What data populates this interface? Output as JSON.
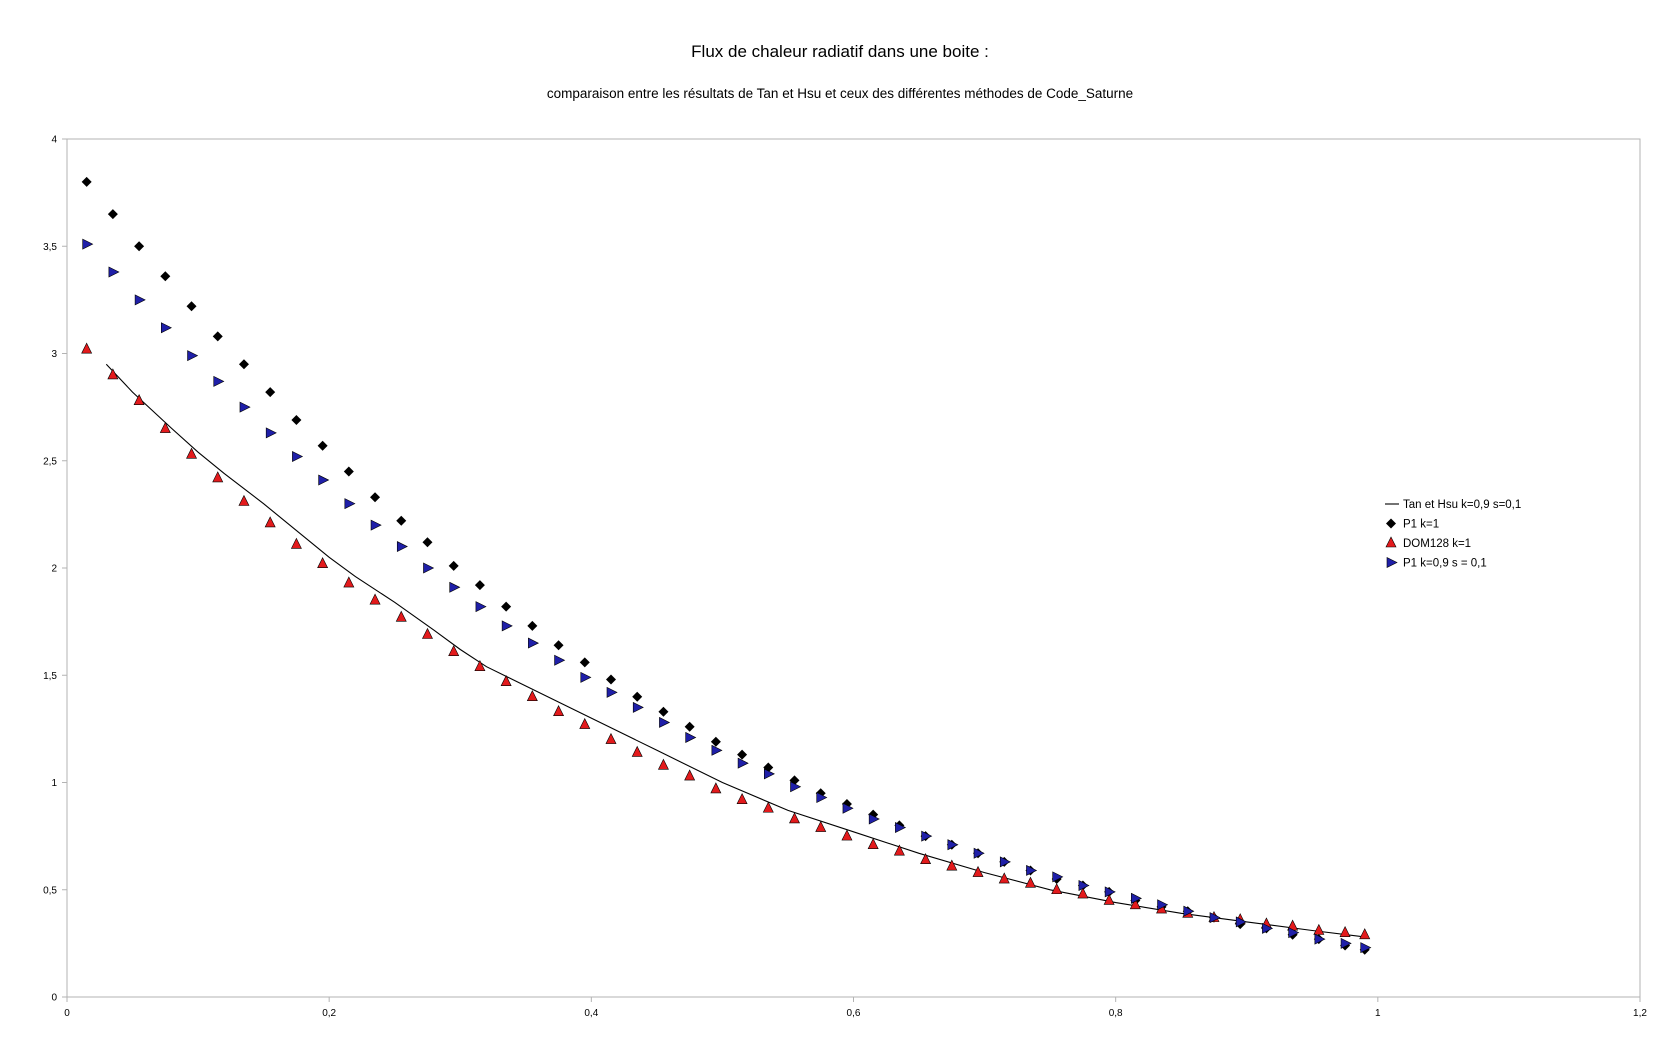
{
  "chart_data": {
    "type": "scatter",
    "title": "Flux de chaleur radiatif dans une boite :",
    "subtitle": "comparaison entre les résultats de Tan et Hsu et ceux des différentes méthodes de Code_Saturne",
    "xlim": [
      0,
      1.2
    ],
    "ylim": [
      0,
      4
    ],
    "x_ticks": [
      "0",
      "0,2",
      "0,4",
      "0,6",
      "0,8",
      "1",
      "1,2"
    ],
    "y_ticks": [
      "0",
      "0,5",
      "1",
      "1,5",
      "2",
      "2,5",
      "3",
      "3,5",
      "4"
    ],
    "grid": false,
    "legend_position": "right",
    "series": [
      {
        "name": "Tan et Hsu k=0,9 s=0,1",
        "marker": "line",
        "color": "#000000",
        "x": [
          0.03,
          0.05,
          0.08,
          0.1,
          0.12,
          0.15,
          0.18,
          0.2,
          0.22,
          0.25,
          0.28,
          0.3,
          0.32,
          0.35,
          0.4,
          0.45,
          0.5,
          0.55,
          0.6,
          0.65,
          0.7,
          0.75,
          0.8,
          0.85,
          0.9,
          0.95,
          0.99
        ],
        "y": [
          2.95,
          2.82,
          2.65,
          2.54,
          2.44,
          2.3,
          2.15,
          2.05,
          1.96,
          1.84,
          1.71,
          1.62,
          1.54,
          1.45,
          1.3,
          1.15,
          1.0,
          0.87,
          0.77,
          0.67,
          0.58,
          0.5,
          0.44,
          0.39,
          0.35,
          0.31,
          0.28
        ]
      },
      {
        "name": "P1 k=1",
        "marker": "diamond",
        "color": "#000000",
        "x": [
          0.015,
          0.035,
          0.055,
          0.075,
          0.095,
          0.115,
          0.135,
          0.155,
          0.175,
          0.195,
          0.215,
          0.235,
          0.255,
          0.275,
          0.295,
          0.315,
          0.335,
          0.355,
          0.375,
          0.395,
          0.415,
          0.435,
          0.455,
          0.475,
          0.495,
          0.515,
          0.535,
          0.555,
          0.575,
          0.595,
          0.615,
          0.635,
          0.655,
          0.675,
          0.695,
          0.715,
          0.735,
          0.755,
          0.775,
          0.795,
          0.815,
          0.835,
          0.855,
          0.875,
          0.895,
          0.915,
          0.935,
          0.955,
          0.975,
          0.99
        ],
        "y": [
          3.8,
          3.65,
          3.5,
          3.36,
          3.22,
          3.08,
          2.95,
          2.82,
          2.69,
          2.57,
          2.45,
          2.33,
          2.22,
          2.12,
          2.01,
          1.92,
          1.82,
          1.73,
          1.64,
          1.56,
          1.48,
          1.4,
          1.33,
          1.26,
          1.19,
          1.13,
          1.07,
          1.01,
          0.95,
          0.9,
          0.85,
          0.8,
          0.75,
          0.71,
          0.67,
          0.63,
          0.59,
          0.55,
          0.52,
          0.49,
          0.45,
          0.42,
          0.4,
          0.37,
          0.34,
          0.32,
          0.29,
          0.27,
          0.24,
          0.22
        ]
      },
      {
        "name": "DOM128 k=1",
        "marker": "triangle",
        "color": "#e31a1c",
        "x": [
          0.015,
          0.035,
          0.055,
          0.075,
          0.095,
          0.115,
          0.135,
          0.155,
          0.175,
          0.195,
          0.215,
          0.235,
          0.255,
          0.275,
          0.295,
          0.315,
          0.335,
          0.355,
          0.375,
          0.395,
          0.415,
          0.435,
          0.455,
          0.475,
          0.495,
          0.515,
          0.535,
          0.555,
          0.575,
          0.595,
          0.615,
          0.635,
          0.655,
          0.675,
          0.695,
          0.715,
          0.735,
          0.755,
          0.775,
          0.795,
          0.815,
          0.835,
          0.855,
          0.875,
          0.895,
          0.915,
          0.935,
          0.955,
          0.975,
          0.99
        ],
        "y": [
          3.02,
          2.9,
          2.78,
          2.65,
          2.53,
          2.42,
          2.31,
          2.21,
          2.11,
          2.02,
          1.93,
          1.85,
          1.77,
          1.69,
          1.61,
          1.54,
          1.47,
          1.4,
          1.33,
          1.27,
          1.2,
          1.14,
          1.08,
          1.03,
          0.97,
          0.92,
          0.88,
          0.83,
          0.79,
          0.75,
          0.71,
          0.68,
          0.64,
          0.61,
          0.58,
          0.55,
          0.53,
          0.5,
          0.48,
          0.45,
          0.43,
          0.41,
          0.39,
          0.37,
          0.36,
          0.34,
          0.33,
          0.31,
          0.3,
          0.29
        ]
      },
      {
        "name": "P1 k=0,9 s = 0,1",
        "marker": "triangle-right",
        "color": "#1f1fa8",
        "x": [
          0.015,
          0.035,
          0.055,
          0.075,
          0.095,
          0.115,
          0.135,
          0.155,
          0.175,
          0.195,
          0.215,
          0.235,
          0.255,
          0.275,
          0.295,
          0.315,
          0.335,
          0.355,
          0.375,
          0.395,
          0.415,
          0.435,
          0.455,
          0.475,
          0.495,
          0.515,
          0.535,
          0.555,
          0.575,
          0.595,
          0.615,
          0.635,
          0.655,
          0.675,
          0.695,
          0.715,
          0.735,
          0.755,
          0.775,
          0.795,
          0.815,
          0.835,
          0.855,
          0.875,
          0.895,
          0.915,
          0.935,
          0.955,
          0.975,
          0.99
        ],
        "y": [
          3.51,
          3.38,
          3.25,
          3.12,
          2.99,
          2.87,
          2.75,
          2.63,
          2.52,
          2.41,
          2.3,
          2.2,
          2.1,
          2.0,
          1.91,
          1.82,
          1.73,
          1.65,
          1.57,
          1.49,
          1.42,
          1.35,
          1.28,
          1.21,
          1.15,
          1.09,
          1.04,
          0.98,
          0.93,
          0.88,
          0.83,
          0.79,
          0.75,
          0.71,
          0.67,
          0.63,
          0.59,
          0.56,
          0.52,
          0.49,
          0.46,
          0.43,
          0.4,
          0.37,
          0.35,
          0.32,
          0.3,
          0.27,
          0.25,
          0.23
        ]
      }
    ]
  }
}
